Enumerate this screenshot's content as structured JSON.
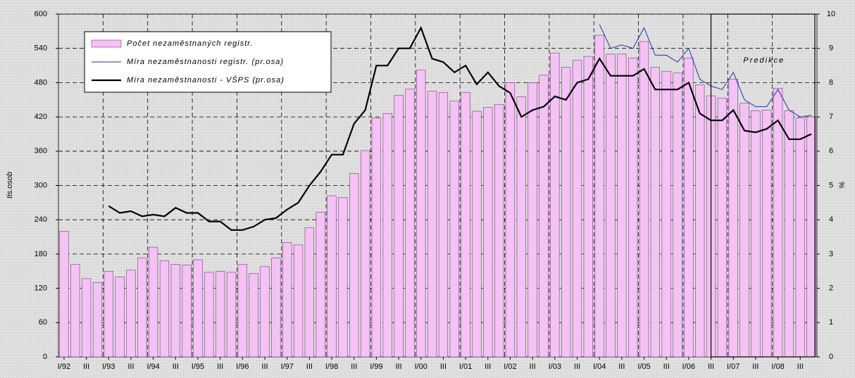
{
  "chart_data": {
    "type": "bar",
    "annotation": "Predikce",
    "y_label": "tis.osob",
    "y2_label": "%",
    "categories": [
      "I/92",
      null,
      "III",
      null,
      "I/93",
      null,
      "III",
      null,
      "I/94",
      null,
      "III",
      null,
      "I/95",
      null,
      "III",
      null,
      "I/96",
      null,
      "III",
      null,
      "I/97",
      null,
      "III",
      null,
      "I/98",
      null,
      "III",
      null,
      "I/99",
      null,
      "III",
      null,
      "I/00",
      null,
      "III",
      null,
      "I/01",
      null,
      "III",
      null,
      "I/02",
      null,
      "III",
      null,
      "I/03",
      null,
      "III",
      null,
      "I/04",
      null,
      "III",
      null,
      "I/05",
      null,
      "III",
      null,
      "I/06",
      null,
      "III",
      null,
      "I/07",
      null,
      "III",
      null,
      "I/08",
      null,
      "III",
      null
    ],
    "series": [
      {
        "name": "Počet nezaměstnaných registr.",
        "type": "bar",
        "axis": "y",
        "color": "#f5c2f5",
        "values": [
          220,
          162,
          137,
          130,
          150,
          140,
          152,
          173,
          192,
          168,
          162,
          161,
          170,
          148,
          150,
          148,
          162,
          146,
          158,
          173,
          200,
          196,
          226,
          253,
          282,
          279,
          321,
          361,
          418,
          426,
          458,
          469,
          502,
          465,
          463,
          448,
          463,
          430,
          437,
          442,
          480,
          455,
          480,
          493,
          532,
          507,
          519,
          526,
          563,
          530,
          530,
          523,
          552,
          507,
          500,
          497,
          523,
          476,
          457,
          453,
          486,
          444,
          431,
          432,
          470,
          431,
          418,
          420
        ]
      },
      {
        "name": "Míra nezaměstnanosti registr. (pr.osa)",
        "type": "line",
        "axis": "y2",
        "color": "#2233aa",
        "width": 1,
        "values": [
          null,
          null,
          null,
          null,
          null,
          null,
          null,
          null,
          null,
          null,
          null,
          null,
          null,
          null,
          null,
          null,
          null,
          null,
          null,
          null,
          null,
          null,
          null,
          null,
          null,
          null,
          null,
          null,
          null,
          null,
          null,
          null,
          null,
          null,
          null,
          null,
          null,
          null,
          null,
          null,
          null,
          null,
          null,
          null,
          null,
          null,
          null,
          null,
          9.7,
          9.0,
          9.1,
          9.0,
          9.6,
          8.8,
          8.8,
          8.6,
          9.0,
          8.1,
          7.9,
          7.8,
          8.3,
          7.5,
          7.3,
          7.3,
          7.8,
          7.2,
          7.0,
          7.05
        ]
      },
      {
        "name": "Míra nezaměstnanosti - VŠPS (pr.osa)",
        "type": "line",
        "axis": "y2",
        "color": "#000000",
        "width": 2.2,
        "values": [
          null,
          null,
          null,
          null,
          4.4,
          4.2,
          4.25,
          4.1,
          4.15,
          4.1,
          4.35,
          4.2,
          4.2,
          3.95,
          3.95,
          3.7,
          3.7,
          3.8,
          4.0,
          4.05,
          4.3,
          4.5,
          5.0,
          5.4,
          5.9,
          5.9,
          6.8,
          7.2,
          8.5,
          8.5,
          9.0,
          9.0,
          9.6,
          8.7,
          8.6,
          8.3,
          8.5,
          7.95,
          8.3,
          7.9,
          7.7,
          7.0,
          7.2,
          7.3,
          7.6,
          7.5,
          8.0,
          8.1,
          8.7,
          8.2,
          8.2,
          8.2,
          8.4,
          7.8,
          7.8,
          7.8,
          8.0,
          7.1,
          6.9,
          6.9,
          7.2,
          6.6,
          6.55,
          6.65,
          6.9,
          6.35,
          6.35,
          6.5
        ]
      }
    ],
    "ylim": [
      0,
      600
    ],
    "yticks": [
      0,
      60,
      120,
      180,
      240,
      300,
      360,
      420,
      480,
      540,
      600
    ],
    "y2lim": [
      0,
      10
    ],
    "y2ticks": [
      0,
      1,
      2,
      3,
      4,
      5,
      6,
      7,
      8,
      9,
      10
    ],
    "grid": true
  }
}
